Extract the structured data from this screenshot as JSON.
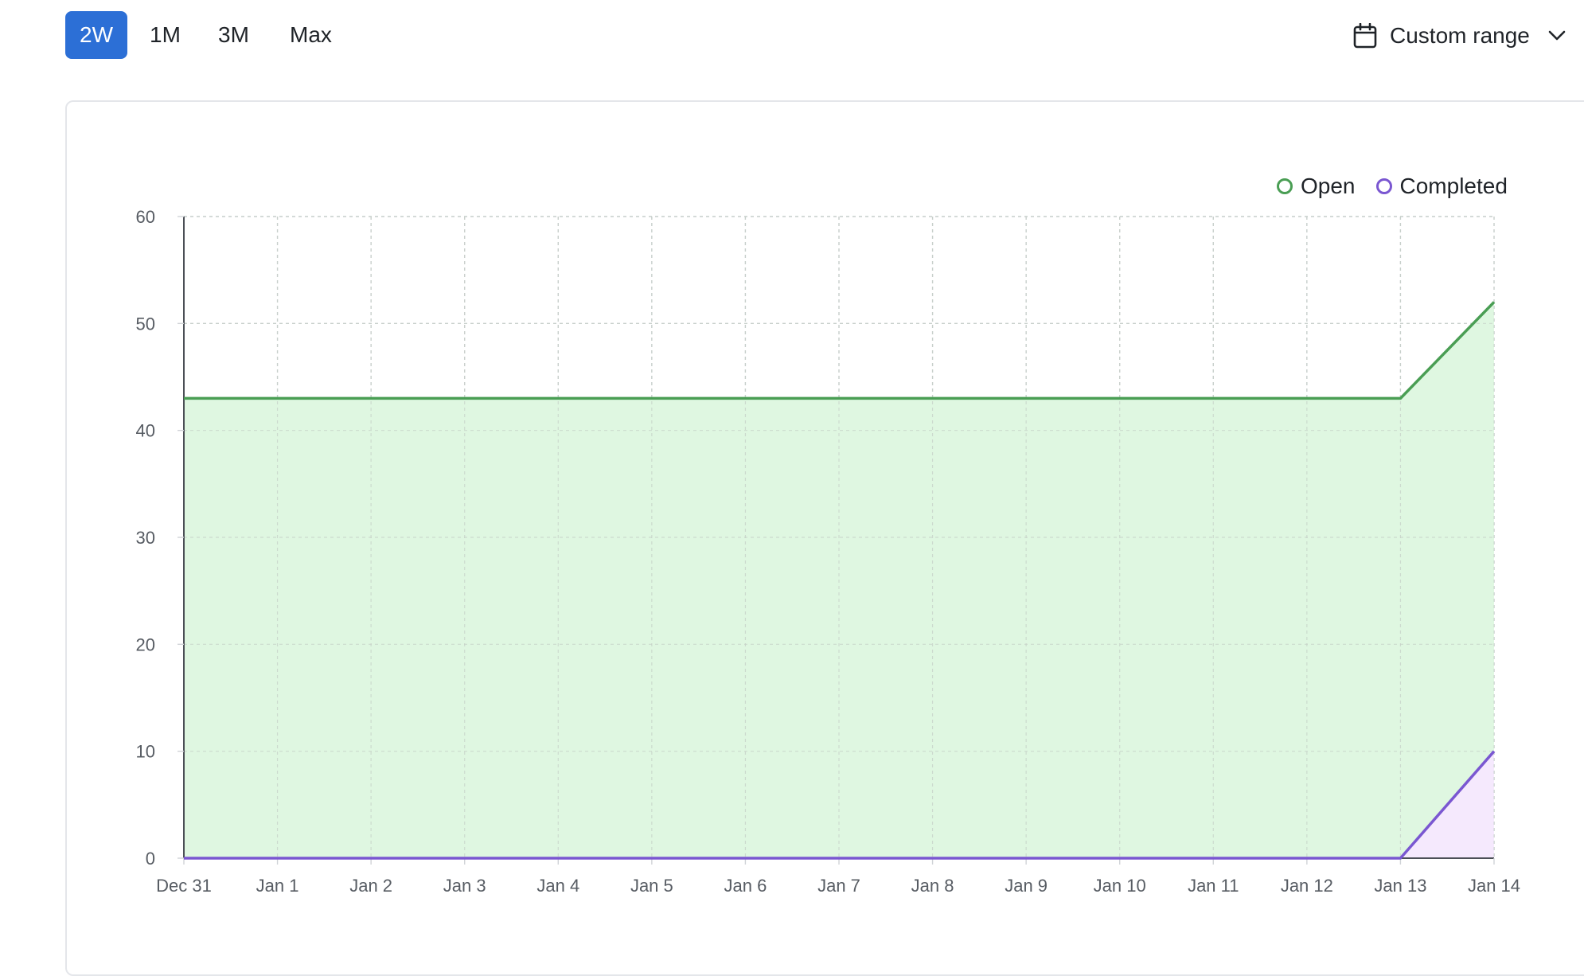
{
  "toolbar": {
    "ranges": [
      {
        "label": "2W",
        "active": true
      },
      {
        "label": "1M",
        "active": false
      },
      {
        "label": "3M",
        "active": false
      },
      {
        "label": "Max",
        "active": false
      }
    ],
    "custom_range_label": "Custom range",
    "calendar_icon": "calendar-icon",
    "dropdown_icon": "chevron-down-icon"
  },
  "legend": {
    "open_label": "Open",
    "completed_label": "Completed"
  },
  "colors": {
    "accent": "#2c6fd6",
    "open_line": "#4a9e54",
    "open_fill": "#dff7e1",
    "completed_line": "#7a57d1",
    "completed_fill": "#f5e9fd",
    "grid": "#d0d3d7",
    "axis": "#4b4f56",
    "tick_text": "#575c63"
  },
  "chart_data": {
    "type": "area",
    "x": [
      "Dec 31",
      "Jan 1",
      "Jan 2",
      "Jan 3",
      "Jan 4",
      "Jan 5",
      "Jan 6",
      "Jan 7",
      "Jan 8",
      "Jan 9",
      "Jan 10",
      "Jan 11",
      "Jan 12",
      "Jan 13",
      "Jan 14"
    ],
    "series": [
      {
        "name": "Open",
        "values": [
          43,
          43,
          43,
          43,
          43,
          43,
          43,
          43,
          43,
          43,
          43,
          43,
          43,
          43,
          52
        ]
      },
      {
        "name": "Completed",
        "values": [
          0,
          0,
          0,
          0,
          0,
          0,
          0,
          0,
          0,
          0,
          0,
          0,
          0,
          0,
          10
        ]
      }
    ],
    "yticks": [
      0,
      10,
      20,
      30,
      40,
      50,
      60
    ],
    "ylim": [
      0,
      60
    ],
    "grid": true,
    "legend_position": "top-right",
    "title": "",
    "xlabel": "",
    "ylabel": ""
  }
}
